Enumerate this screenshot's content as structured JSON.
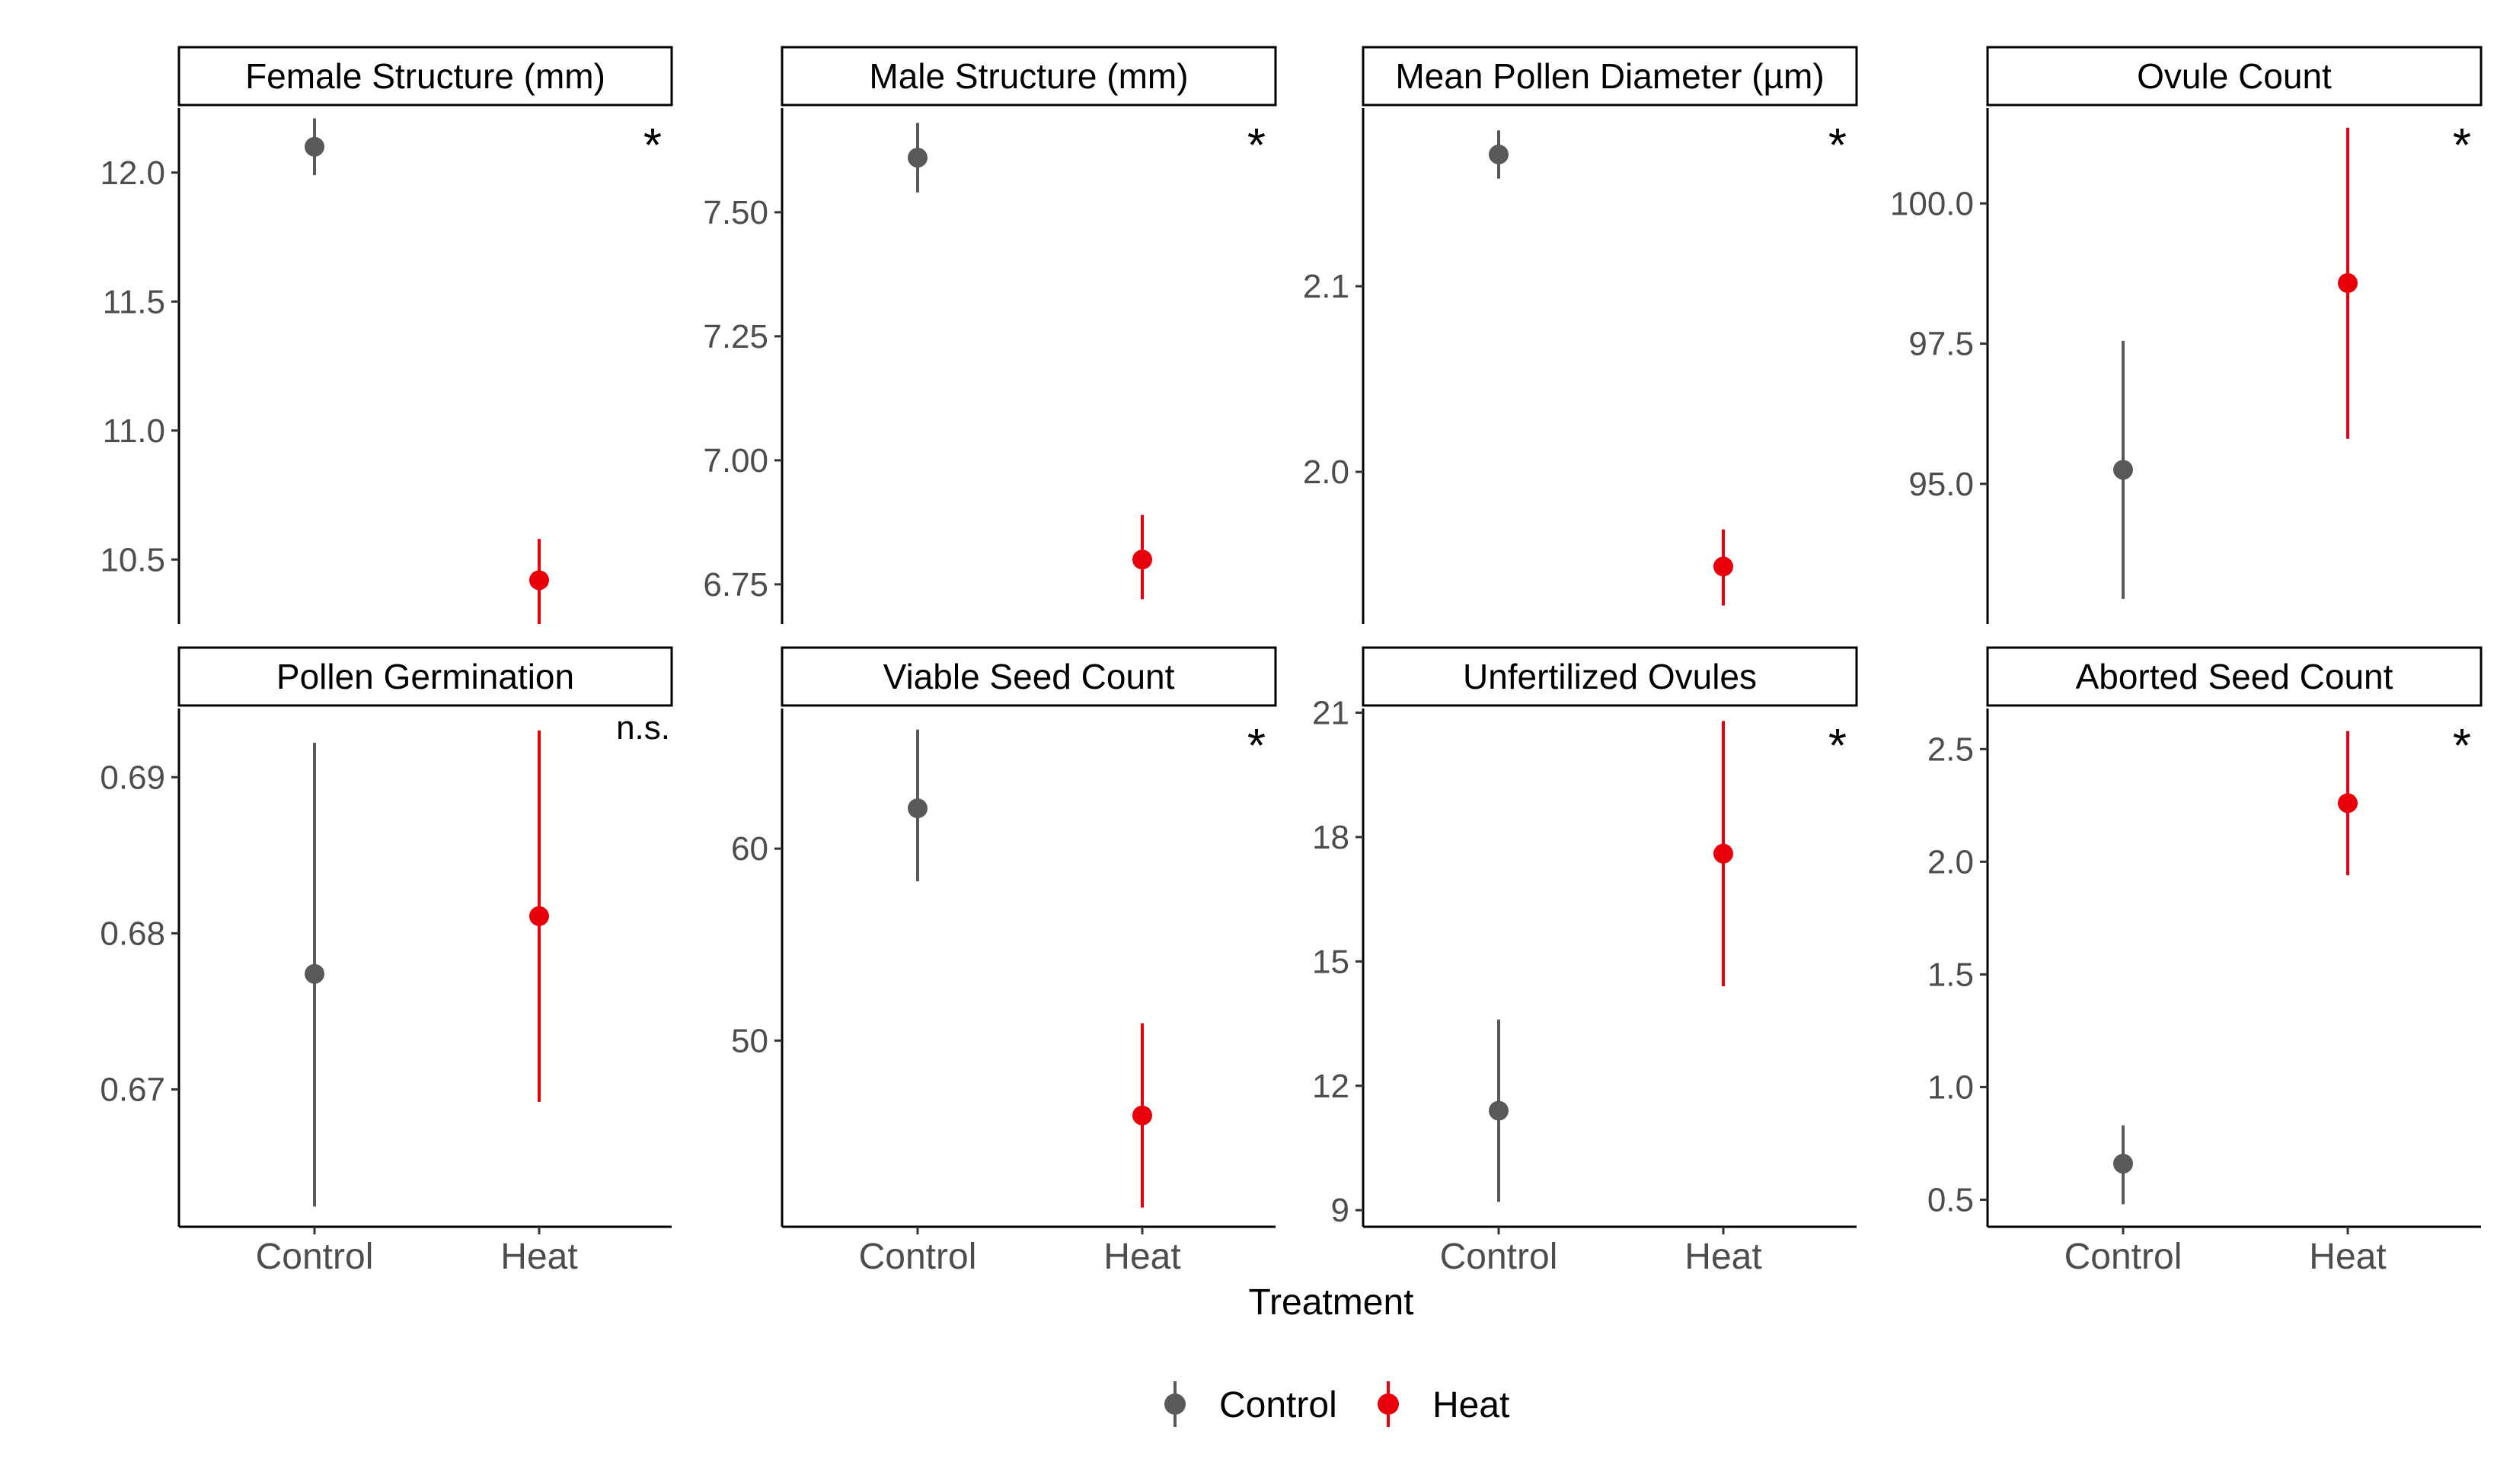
{
  "x_axis_title": "Treatment",
  "legend": {
    "items": [
      {
        "label": "Control",
        "color": "#595959"
      },
      {
        "label": "Heat",
        "color": "#e8000b"
      }
    ]
  },
  "chart_data": [
    {
      "type": "scatter",
      "title": "Female Structure (mm)",
      "categories": [
        "Control",
        "Heat"
      ],
      "ylim": [
        10.25,
        12.25
      ],
      "yticks": [
        "10.5",
        "11.0",
        "11.5",
        "12.0"
      ],
      "significance": "*",
      "series": [
        {
          "name": "Control",
          "x": "Control",
          "y": 12.1,
          "lower": 11.99,
          "upper": 12.21
        },
        {
          "name": "Heat",
          "x": "Heat",
          "y": 10.42,
          "lower": 10.25,
          "upper": 10.58
        }
      ]
    },
    {
      "type": "scatter",
      "title": "Male Structure (mm)",
      "categories": [
        "Control",
        "Heat"
      ],
      "ylim": [
        6.67,
        7.71
      ],
      "yticks": [
        "6.75",
        "7.00",
        "7.25",
        "7.50"
      ],
      "significance": "*",
      "series": [
        {
          "name": "Control",
          "x": "Control",
          "y": 7.61,
          "lower": 7.54,
          "upper": 7.68
        },
        {
          "name": "Heat",
          "x": "Heat",
          "y": 6.8,
          "lower": 6.72,
          "upper": 6.89
        }
      ]
    },
    {
      "type": "scatter",
      "title": "Mean Pollen Diameter (µm)",
      "categories": [
        "Control",
        "Heat"
      ],
      "ylim": [
        1.918,
        2.196
      ],
      "yticks": [
        "2.0",
        "2.1"
      ],
      "significance": "*",
      "series": [
        {
          "name": "Control",
          "x": "Control",
          "y": 2.171,
          "lower": 2.158,
          "upper": 2.184
        },
        {
          "name": "Heat",
          "x": "Heat",
          "y": 1.949,
          "lower": 1.928,
          "upper": 1.969
        }
      ]
    },
    {
      "type": "scatter",
      "title": "Ovule Count",
      "categories": [
        "Control",
        "Heat"
      ],
      "ylim": [
        92.5,
        101.7
      ],
      "yticks": [
        "95.0",
        "97.5",
        "100.0"
      ],
      "significance": "*",
      "series": [
        {
          "name": "Control",
          "x": "Control",
          "y": 95.25,
          "lower": 92.95,
          "upper": 97.55
        },
        {
          "name": "Heat",
          "x": "Heat",
          "y": 98.58,
          "lower": 95.8,
          "upper": 101.35
        }
      ]
    },
    {
      "type": "scatter",
      "title": "Pollen Germination",
      "categories": [
        "Control",
        "Heat"
      ],
      "ylim": [
        0.6612,
        0.6944
      ],
      "yticks": [
        "0.67",
        "0.68",
        "0.69"
      ],
      "significance": "n.s.",
      "series": [
        {
          "name": "Control",
          "x": "Control",
          "y": 0.6774,
          "lower": 0.6625,
          "upper": 0.6922
        },
        {
          "name": "Heat",
          "x": "Heat",
          "y": 0.6811,
          "lower": 0.6692,
          "upper": 0.693
        }
      ]
    },
    {
      "type": "scatter",
      "title": "Viable Seed Count",
      "categories": [
        "Control",
        "Heat"
      ],
      "ylim": [
        40.3,
        67.3
      ],
      "yticks": [
        "50",
        "60"
      ],
      "significance": "*",
      "series": [
        {
          "name": "Control",
          "x": "Control",
          "y": 62.1,
          "lower": 58.3,
          "upper": 66.2
        },
        {
          "name": "Heat",
          "x": "Heat",
          "y": 46.1,
          "lower": 41.3,
          "upper": 50.9
        }
      ]
    },
    {
      "type": "scatter",
      "title": "Unfertilized Ovules",
      "categories": [
        "Control",
        "Heat"
      ],
      "ylim": [
        8.6,
        21.1
      ],
      "yticks": [
        "9",
        "12",
        "15",
        "18",
        "21"
      ],
      "significance": "*",
      "series": [
        {
          "name": "Control",
          "x": "Control",
          "y": 11.4,
          "lower": 9.2,
          "upper": 13.6
        },
        {
          "name": "Heat",
          "x": "Heat",
          "y": 17.6,
          "lower": 14.4,
          "upper": 20.8
        }
      ]
    },
    {
      "type": "scatter",
      "title": "Aborted Seed Count",
      "categories": [
        "Control",
        "Heat"
      ],
      "ylim": [
        0.38,
        2.68
      ],
      "yticks": [
        "0.5",
        "1.0",
        "1.5",
        "2.0",
        "2.5"
      ],
      "significance": "*",
      "series": [
        {
          "name": "Control",
          "x": "Control",
          "y": 0.66,
          "lower": 0.48,
          "upper": 0.83
        },
        {
          "name": "Heat",
          "x": "Heat",
          "y": 2.26,
          "lower": 1.94,
          "upper": 2.58
        }
      ]
    }
  ]
}
